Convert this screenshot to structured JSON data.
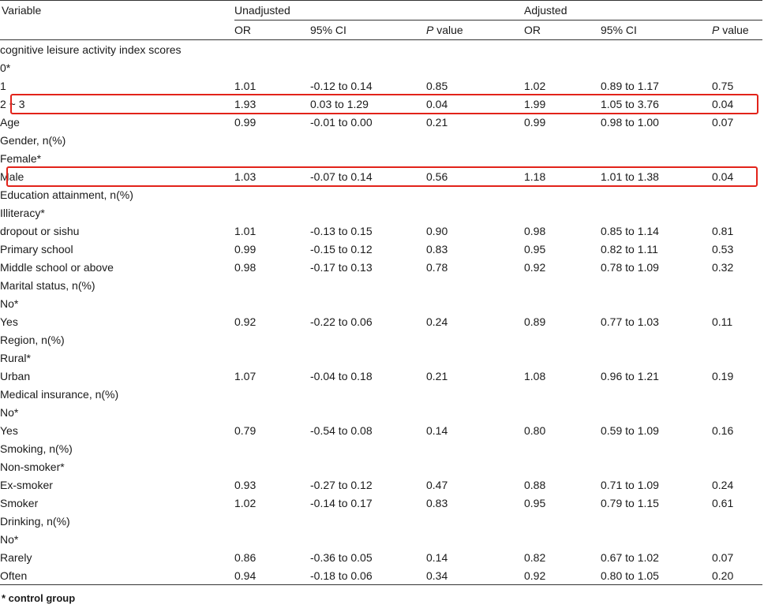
{
  "headers": {
    "variable": "Variable",
    "unadjusted": "Unadjusted",
    "adjusted": "Adjusted",
    "or": "OR",
    "ci": "95% CI",
    "p_italic": "P",
    "p_rest": " value"
  },
  "rows": [
    {
      "label": "cognitive leisure activity index scores",
      "indent": false
    },
    {
      "label": "0*",
      "indent": true
    },
    {
      "label": "1",
      "indent": true,
      "or1": "1.01",
      "ci1": "-0.12 to 0.14",
      "p1": "0.85",
      "or2": "1.02",
      "ci2": "0.89 to 1.17",
      "p2": "0.75"
    },
    {
      "label": "2 ~ 3",
      "indent": true,
      "or1": "1.93",
      "ci1": "0.03 to 1.29",
      "p1": "0.04",
      "p1_bold": true,
      "or2": "1.99",
      "ci2": "1.05 to 3.76",
      "p2": "0.04",
      "p2_bold": true,
      "highlight": true
    },
    {
      "label": "Age",
      "indent": false,
      "or1": "0.99",
      "ci1": "-0.01 to 0.00",
      "p1": "0.21",
      "or2": "0.99",
      "ci2": "0.98 to 1.00",
      "p2": "0.07"
    },
    {
      "label": "Gender, n(%)",
      "indent": false
    },
    {
      "label": "Female*",
      "indent": true
    },
    {
      "label": "Male",
      "indent": true,
      "or1": "1.03",
      "ci1": "-0.07 to 0.14",
      "p1": "0.56",
      "or2": "1.18",
      "ci2": "1.01 to 1.38",
      "p2": "0.04",
      "p2_bold": true,
      "highlight": true
    },
    {
      "label": "Education attainment, n(%)",
      "indent": false
    },
    {
      "label": "Illiteracy*",
      "indent": true
    },
    {
      "label": "dropout or sishu",
      "indent": true,
      "or1": "1.01",
      "ci1": "-0.13 to 0.15",
      "p1": "0.90",
      "or2": "0.98",
      "ci2": "0.85 to 1.14",
      "p2": "0.81"
    },
    {
      "label": "Primary school",
      "indent": true,
      "or1": "0.99",
      "ci1": "-0.15 to 0.12",
      "p1": "0.83",
      "or2": "0.95",
      "ci2": "0.82 to 1.11",
      "p2": "0.53"
    },
    {
      "label": "Middle school or above",
      "indent": true,
      "or1": "0.98",
      "ci1": "-0.17 to 0.13",
      "p1": "0.78",
      "or2": "0.92",
      "ci2": "0.78 to 1.09",
      "p2": "0.32"
    },
    {
      "label": "Marital status, n(%)",
      "indent": false
    },
    {
      "label": "No*",
      "indent": true
    },
    {
      "label": "Yes",
      "indent": true,
      "or1": "0.92",
      "ci1": "-0.22 to 0.06",
      "p1": "0.24",
      "or2": "0.89",
      "ci2": "0.77 to 1.03",
      "p2": "0.11"
    },
    {
      "label": "Region, n(%)",
      "indent": false
    },
    {
      "label": "Rural*",
      "indent": true
    },
    {
      "label": "Urban",
      "indent": true,
      "or1": "1.07",
      "ci1": "-0.04 to 0.18",
      "p1": "0.21",
      "or2": "1.08",
      "ci2": "0.96 to 1.21",
      "p2": "0.19"
    },
    {
      "label": "Medical insurance, n(%)",
      "indent": false
    },
    {
      "label": "No*",
      "indent": true
    },
    {
      "label": "Yes",
      "indent": true,
      "or1": "0.79",
      "ci1": "-0.54 to 0.08",
      "p1": "0.14",
      "or2": "0.80",
      "ci2": "0.59 to 1.09",
      "p2": "0.16"
    },
    {
      "label": "Smoking, n(%)",
      "indent": false
    },
    {
      "label": "Non-smoker*",
      "indent": true
    },
    {
      "label": "Ex-smoker",
      "indent": true,
      "or1": "0.93",
      "ci1": "-0.27 to 0.12",
      "p1": "0.47",
      "or2": "0.88",
      "ci2": "0.71 to 1.09",
      "p2": "0.24"
    },
    {
      "label": "Smoker",
      "indent": true,
      "or1": "1.02",
      "ci1": "-0.14 to 0.17",
      "p1": "0.83",
      "or2": "0.95",
      "ci2": "0.79 to 1.15",
      "p2": "0.61"
    },
    {
      "label": "Drinking, n(%)",
      "indent": false
    },
    {
      "label": "No*",
      "indent": true
    },
    {
      "label": "Rarely",
      "indent": true,
      "or1": "0.86",
      "ci1": "-0.36 to 0.05",
      "p1": "0.14",
      "or2": "0.82",
      "ci2": "0.67 to 1.02",
      "p2": "0.07"
    },
    {
      "label": "Often",
      "indent": true,
      "or1": "0.94",
      "ci1": "-0.18 to 0.06",
      "p1": "0.34",
      "or2": "0.92",
      "ci2": "0.80 to 1.05",
      "p2": "0.20"
    }
  ],
  "footnote": "* control group",
  "highlight_color": "#e2231a"
}
